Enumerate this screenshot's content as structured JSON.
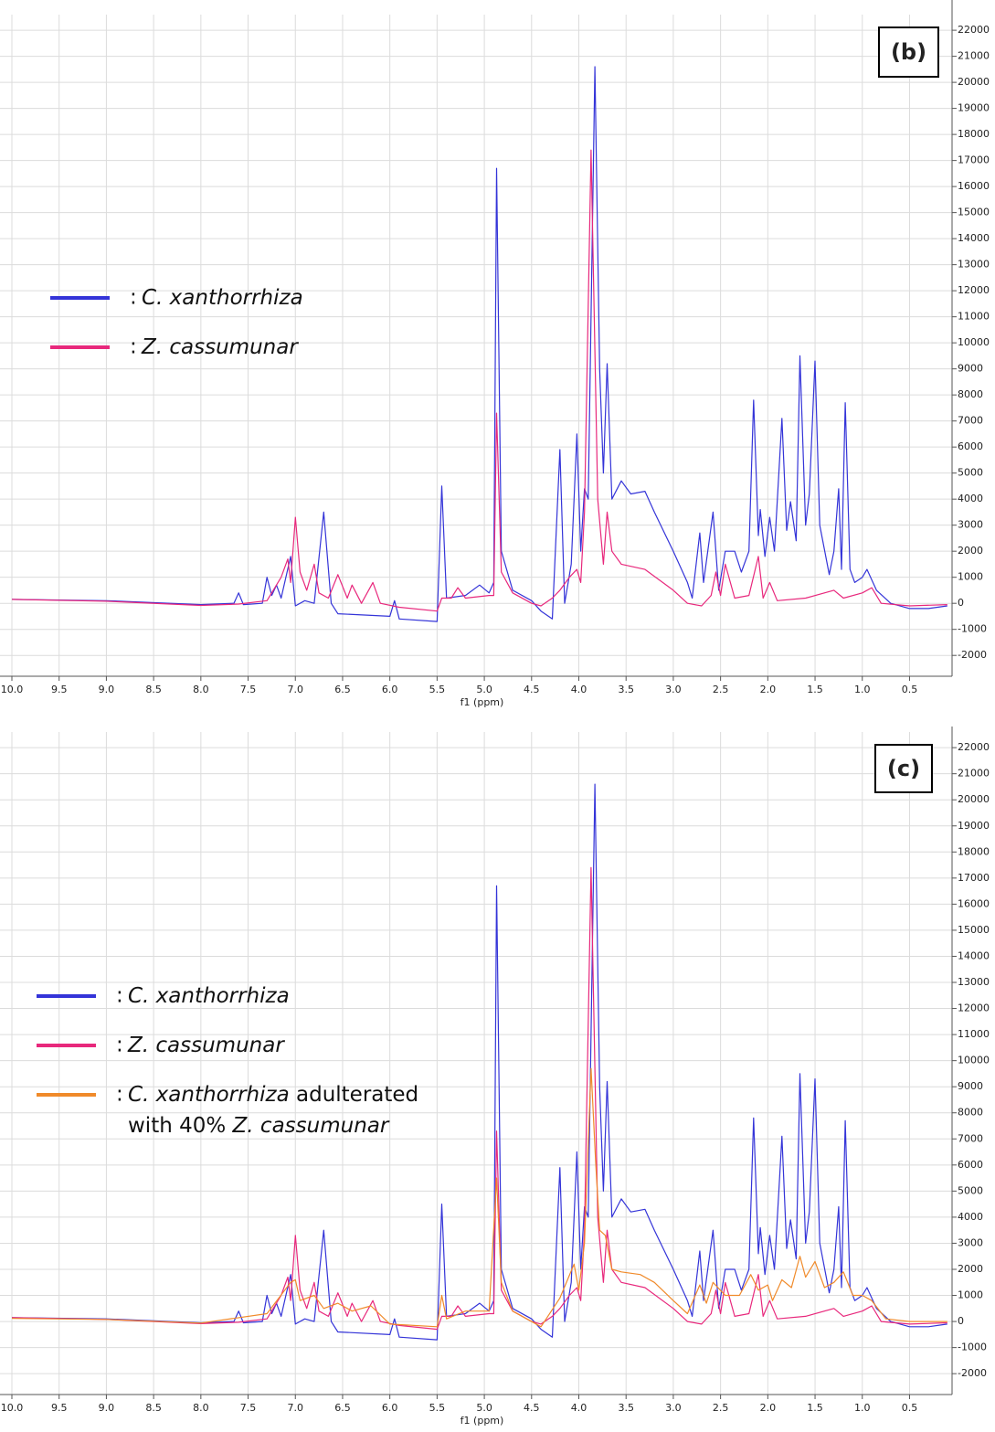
{
  "chart_data": [
    {
      "type": "line",
      "panel_label": "(b)",
      "x_label": "f1 (ppm)",
      "legend_prefix": ":",
      "xlim": [
        10.0,
        0.05
      ],
      "ylim": [
        -2800,
        22600
      ],
      "xticks": [
        {
          "value": 10.0,
          "label": "10.0"
        },
        9.5,
        {
          "value": 9.0,
          "label": "9.0"
        },
        8.5,
        {
          "value": 8.0,
          "label": "8.0"
        },
        7.5,
        {
          "value": 7.0,
          "label": "7.0"
        },
        6.5,
        {
          "value": 6.0,
          "label": "6.0"
        },
        5.5,
        {
          "value": 5.0,
          "label": "5.0"
        },
        4.5,
        {
          "value": 4.0,
          "label": "4.0"
        },
        3.5,
        {
          "value": 3.0,
          "label": "3.0"
        },
        2.5,
        {
          "value": 2.0,
          "label": "2.0"
        },
        1.5,
        {
          "value": 1.0,
          "label": "1.0"
        },
        0.5
      ],
      "yticks": [
        -2000,
        -1000,
        0,
        1000,
        2000,
        3000,
        4000,
        5000,
        6000,
        7000,
        8000,
        9000,
        10000,
        11000,
        12000,
        13000,
        14000,
        15000,
        16000,
        17000,
        18000,
        19000,
        20000,
        21000,
        22000
      ],
      "grid": true,
      "series": [
        {
          "name": "C. xanthorrhiza",
          "color": "#3434d8",
          "x": [
            10.0,
            9.0,
            8.0,
            7.65,
            7.6,
            7.55,
            7.35,
            7.3,
            7.25,
            7.2,
            7.15,
            7.05,
            7.0,
            6.9,
            6.8,
            6.7,
            6.62,
            6.55,
            6.0,
            5.95,
            5.9,
            5.5,
            5.45,
            5.4,
            5.2,
            5.05,
            4.95,
            4.9,
            4.87,
            4.82,
            4.7,
            4.5,
            4.4,
            4.28,
            4.2,
            4.15,
            4.08,
            4.02,
            3.98,
            3.94,
            3.9,
            3.83,
            3.78,
            3.74,
            3.7,
            3.65,
            3.55,
            3.45,
            3.3,
            3.2,
            3.0,
            2.85,
            2.8,
            2.72,
            2.68,
            2.58,
            2.52,
            2.45,
            2.35,
            2.28,
            2.2,
            2.15,
            2.1,
            2.08,
            2.03,
            1.98,
            1.93,
            1.85,
            1.8,
            1.76,
            1.7,
            1.66,
            1.6,
            1.56,
            1.5,
            1.45,
            1.35,
            1.3,
            1.25,
            1.22,
            1.18,
            1.13,
            1.08,
            1.0,
            0.95,
            0.85,
            0.7,
            0.5,
            0.3,
            0.1
          ],
          "values": [
            150,
            100,
            -50,
            0,
            400,
            -50,
            0,
            1000,
            300,
            700,
            200,
            1800,
            -100,
            100,
            0,
            3500,
            0,
            -400,
            -500,
            100,
            -600,
            -700,
            4500,
            200,
            300,
            700,
            400,
            800,
            16700,
            2000,
            500,
            100,
            -300,
            -600,
            5900,
            0,
            1500,
            6500,
            2000,
            4400,
            4000,
            20600,
            9000,
            5000,
            9200,
            4000,
            4700,
            4200,
            4300,
            3500,
            2000,
            800,
            200,
            2700,
            800,
            3500,
            500,
            2000,
            2000,
            1200,
            2000,
            7800,
            2600,
            3600,
            1800,
            3300,
            2000,
            7100,
            2800,
            3900,
            2400,
            9500,
            3000,
            4200,
            9300,
            3000,
            1100,
            2000,
            4400,
            1300,
            7700,
            1300,
            800,
            1000,
            1300,
            500,
            0,
            -200,
            -200,
            -100
          ]
        },
        {
          "name": "Z. cassumunar",
          "color": "#e8287c",
          "x": [
            10.0,
            9.0,
            8.0,
            7.6,
            7.3,
            7.15,
            7.08,
            7.05,
            7.0,
            6.95,
            6.88,
            6.8,
            6.75,
            6.65,
            6.55,
            6.45,
            6.4,
            6.3,
            6.18,
            6.1,
            5.9,
            5.5,
            5.45,
            5.35,
            5.28,
            5.2,
            4.95,
            4.9,
            4.87,
            4.82,
            4.7,
            4.5,
            4.4,
            4.28,
            4.2,
            4.1,
            4.02,
            3.98,
            3.94,
            3.87,
            3.8,
            3.74,
            3.7,
            3.65,
            3.55,
            3.3,
            3.0,
            2.85,
            2.7,
            2.6,
            2.55,
            2.5,
            2.45,
            2.35,
            2.2,
            2.1,
            2.05,
            1.98,
            1.9,
            1.6,
            1.3,
            1.2,
            1.0,
            0.9,
            0.8,
            0.5,
            0.1
          ],
          "values": [
            150,
            80,
            -80,
            -30,
            100,
            1000,
            1700,
            800,
            3300,
            1200,
            500,
            1500,
            400,
            200,
            1100,
            200,
            700,
            0,
            800,
            0,
            -150,
            -300,
            200,
            200,
            600,
            200,
            300,
            300,
            7300,
            1200,
            400,
            0,
            -100,
            200,
            500,
            1000,
            1300,
            800,
            3500,
            17400,
            4000,
            1500,
            3500,
            2000,
            1500,
            1300,
            500,
            0,
            -100,
            300,
            1200,
            300,
            1500,
            200,
            300,
            1800,
            200,
            800,
            100,
            200,
            500,
            200,
            400,
            600,
            0,
            -100,
            -50
          ]
        }
      ]
    },
    {
      "type": "line",
      "panel_label": "(c)",
      "x_label": "f1 (ppm)",
      "legend_prefix": ":",
      "xlim": [
        10.0,
        0.05
      ],
      "ylim": [
        -2800,
        22600
      ],
      "xticks": [
        {
          "value": 10.0,
          "label": "10.0"
        },
        9.5,
        {
          "value": 9.0,
          "label": "9.0"
        },
        8.5,
        {
          "value": 8.0,
          "label": "8.0"
        },
        7.5,
        {
          "value": 7.0,
          "label": "7.0"
        },
        6.5,
        {
          "value": 6.0,
          "label": "6.0"
        },
        5.5,
        {
          "value": 5.0,
          "label": "5.0"
        },
        4.5,
        {
          "value": 4.0,
          "label": "4.0"
        },
        3.5,
        {
          "value": 3.0,
          "label": "3.0"
        },
        2.5,
        {
          "value": 2.0,
          "label": "2.0"
        },
        1.5,
        {
          "value": 1.0,
          "label": "1.0"
        },
        0.5
      ],
      "yticks": [
        -2000,
        -1000,
        0,
        1000,
        2000,
        3000,
        4000,
        5000,
        6000,
        7000,
        8000,
        9000,
        10000,
        11000,
        12000,
        13000,
        14000,
        15000,
        16000,
        17000,
        18000,
        19000,
        20000,
        21000,
        22000
      ],
      "grid": true,
      "series": [
        {
          "name": "C. xanthorrhiza",
          "color": "#3434d8",
          "x": [
            10.0,
            9.0,
            8.0,
            7.65,
            7.6,
            7.55,
            7.35,
            7.3,
            7.25,
            7.2,
            7.15,
            7.05,
            7.0,
            6.9,
            6.8,
            6.7,
            6.62,
            6.55,
            6.0,
            5.95,
            5.9,
            5.5,
            5.45,
            5.4,
            5.2,
            5.05,
            4.95,
            4.9,
            4.87,
            4.82,
            4.7,
            4.5,
            4.4,
            4.28,
            4.2,
            4.15,
            4.08,
            4.02,
            3.98,
            3.94,
            3.9,
            3.83,
            3.78,
            3.74,
            3.7,
            3.65,
            3.55,
            3.45,
            3.3,
            3.2,
            3.0,
            2.85,
            2.8,
            2.72,
            2.68,
            2.58,
            2.52,
            2.45,
            2.35,
            2.28,
            2.2,
            2.15,
            2.1,
            2.08,
            2.03,
            1.98,
            1.93,
            1.85,
            1.8,
            1.76,
            1.7,
            1.66,
            1.6,
            1.56,
            1.5,
            1.45,
            1.35,
            1.3,
            1.25,
            1.22,
            1.18,
            1.13,
            1.08,
            1.0,
            0.95,
            0.85,
            0.7,
            0.5,
            0.3,
            0.1
          ],
          "values": [
            150,
            100,
            -50,
            0,
            400,
            -50,
            0,
            1000,
            300,
            700,
            200,
            1800,
            -100,
            100,
            0,
            3500,
            0,
            -400,
            -500,
            100,
            -600,
            -700,
            4500,
            200,
            300,
            700,
            400,
            800,
            16700,
            2000,
            500,
            100,
            -300,
            -600,
            5900,
            0,
            1500,
            6500,
            2000,
            4400,
            4000,
            20600,
            9000,
            5000,
            9200,
            4000,
            4700,
            4200,
            4300,
            3500,
            2000,
            800,
            200,
            2700,
            800,
            3500,
            500,
            2000,
            2000,
            1200,
            2000,
            7800,
            2600,
            3600,
            1800,
            3300,
            2000,
            7100,
            2800,
            3900,
            2400,
            9500,
            3000,
            4200,
            9300,
            3000,
            1100,
            2000,
            4400,
            1300,
            7700,
            1300,
            800,
            1000,
            1300,
            500,
            0,
            -200,
            -200,
            -100
          ]
        },
        {
          "name": "Z. cassumunar",
          "color": "#e8287c",
          "x": [
            10.0,
            9.0,
            8.0,
            7.6,
            7.3,
            7.15,
            7.08,
            7.05,
            7.0,
            6.95,
            6.88,
            6.8,
            6.75,
            6.65,
            6.55,
            6.45,
            6.4,
            6.3,
            6.18,
            6.1,
            5.9,
            5.5,
            5.45,
            5.35,
            5.28,
            5.2,
            4.95,
            4.9,
            4.87,
            4.82,
            4.7,
            4.5,
            4.4,
            4.28,
            4.2,
            4.1,
            4.02,
            3.98,
            3.94,
            3.87,
            3.8,
            3.74,
            3.7,
            3.65,
            3.55,
            3.3,
            3.0,
            2.85,
            2.7,
            2.6,
            2.55,
            2.5,
            2.45,
            2.35,
            2.2,
            2.1,
            2.05,
            1.98,
            1.9,
            1.6,
            1.3,
            1.2,
            1.0,
            0.9,
            0.8,
            0.5,
            0.1
          ],
          "values": [
            150,
            80,
            -80,
            -30,
            100,
            1000,
            1700,
            800,
            3300,
            1200,
            500,
            1500,
            400,
            200,
            1100,
            200,
            700,
            0,
            800,
            0,
            -150,
            -300,
            200,
            200,
            600,
            200,
            300,
            300,
            7300,
            1200,
            400,
            0,
            -100,
            200,
            500,
            1000,
            1300,
            800,
            3500,
            17400,
            4000,
            1500,
            3500,
            2000,
            1500,
            1300,
            500,
            0,
            -100,
            300,
            1200,
            300,
            1500,
            200,
            300,
            1800,
            200,
            800,
            100,
            200,
            500,
            200,
            400,
            600,
            0,
            -100,
            -50
          ]
        },
        {
          "name": "C. xanthorrhiza adulterated with 40% Z. cassumunar",
          "color": "#f08a2a",
          "x": [
            10.0,
            9.0,
            8.0,
            7.3,
            7.05,
            7.0,
            6.95,
            6.8,
            6.7,
            6.55,
            6.4,
            6.2,
            6.0,
            5.5,
            5.45,
            5.4,
            5.2,
            4.95,
            4.87,
            4.82,
            4.7,
            4.4,
            4.2,
            4.05,
            4.0,
            3.94,
            3.87,
            3.82,
            3.78,
            3.72,
            3.65,
            3.55,
            3.35,
            3.2,
            3.0,
            2.85,
            2.72,
            2.65,
            2.58,
            2.45,
            2.3,
            2.18,
            2.1,
            2.0,
            1.95,
            1.85,
            1.75,
            1.66,
            1.6,
            1.5,
            1.4,
            1.3,
            1.2,
            1.1,
            1.0,
            0.9,
            0.75,
            0.5,
            0.1
          ],
          "values": [
            120,
            80,
            -60,
            300,
            1500,
            1600,
            800,
            1000,
            500,
            700,
            400,
            600,
            -100,
            -200,
            1000,
            100,
            400,
            400,
            5500,
            1500,
            400,
            -200,
            900,
            2200,
            1200,
            3000,
            9700,
            6000,
            3500,
            3300,
            2000,
            1900,
            1800,
            1500,
            800,
            300,
            1400,
            700,
            1500,
            1000,
            1000,
            1800,
            1200,
            1400,
            800,
            1600,
            1300,
            2500,
            1700,
            2300,
            1300,
            1500,
            1900,
            1000,
            1000,
            800,
            100,
            0,
            0
          ]
        }
      ]
    }
  ]
}
